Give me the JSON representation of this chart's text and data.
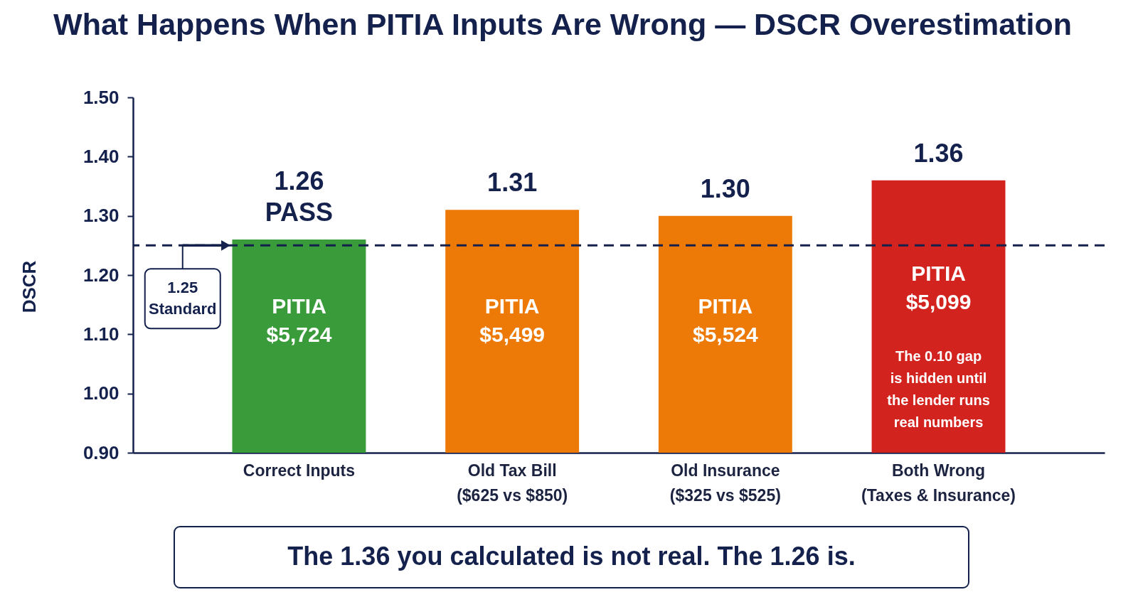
{
  "chart_data": {
    "type": "bar",
    "title": "What Happens When PITIA Inputs Are Wrong — DSCR Overestimation",
    "ylabel": "DSCR",
    "categories": [
      "Correct Inputs",
      "Old Tax Bill\n($625 vs $850)",
      "Old Insurance\n($325 vs $525)",
      "Both Wrong\n(Taxes & Insurance)"
    ],
    "values": [
      1.26,
      1.31,
      1.3,
      1.36
    ],
    "colors": [
      "#3a9b3b",
      "#ed7a06",
      "#ed7a06",
      "#d3231f"
    ],
    "value_labels": [
      "1.26\nPASS",
      "1.31",
      "1.30",
      "1.36"
    ],
    "ylim": [
      0.9,
      1.5
    ],
    "yticks": [
      {
        "value": 0.9,
        "label": "0.90"
      },
      {
        "value": 1.0,
        "label": "1.00"
      },
      {
        "value": 1.1,
        "label": "1.10"
      },
      {
        "value": 1.2,
        "label": "1.20"
      },
      {
        "value": 1.3,
        "label": "1.30"
      },
      {
        "value": 1.4,
        "label": "1.40"
      },
      {
        "value": 1.5,
        "label": "1.50"
      }
    ],
    "grid": false,
    "ref_lines": [
      {
        "axis": "y",
        "value": 1.25,
        "label": "1.25\nStandard",
        "color": "#14214d",
        "line_style": "dashed"
      }
    ],
    "annotations": [
      "PITIA\n$5,724",
      "PITIA\n$5,499",
      "PITIA\n$5,524",
      "PITIA\n$5,099",
      "The 0.10 gap\nis hidden until\nthe lender runs\nreal numbers",
      "The 1.36 you calculated is not real. The 1.26 is."
    ]
  }
}
